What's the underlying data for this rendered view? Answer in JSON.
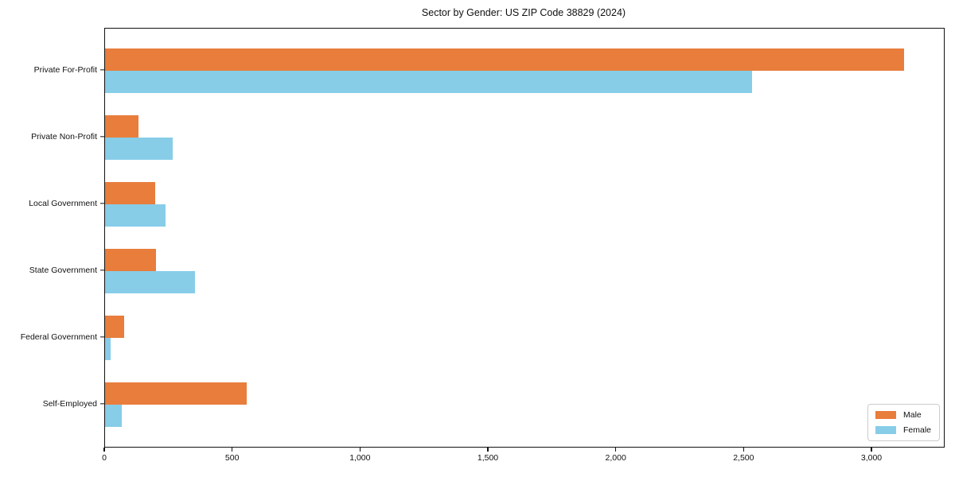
{
  "chart_data": {
    "type": "bar",
    "orientation": "horizontal",
    "title": "Sector by Gender: US ZIP Code 38829 (2024)",
    "categories": [
      "Private For-Profit",
      "Private Non-Profit",
      "Local Government",
      "State Government",
      "Federal Government",
      "Self-Employed"
    ],
    "series": [
      {
        "name": "Male",
        "color": "#E87D3C",
        "values": [
          3124,
          132,
          195,
          198,
          74,
          555
        ]
      },
      {
        "name": "Female",
        "color": "#87CDE8",
        "values": [
          2529,
          266,
          238,
          353,
          22,
          64
        ]
      }
    ],
    "xlabel": "",
    "ylabel": "",
    "xlim": [
      0,
      3280
    ],
    "xticks": [
      0,
      500,
      1000,
      1500,
      2000,
      2500,
      3000
    ],
    "xtick_labels": [
      "0",
      "500",
      "1,000",
      "1,500",
      "2,000",
      "2,500",
      "3,000"
    ],
    "grid": false,
    "legend": {
      "position": "lower right",
      "entries": [
        "Male",
        "Female"
      ]
    }
  }
}
